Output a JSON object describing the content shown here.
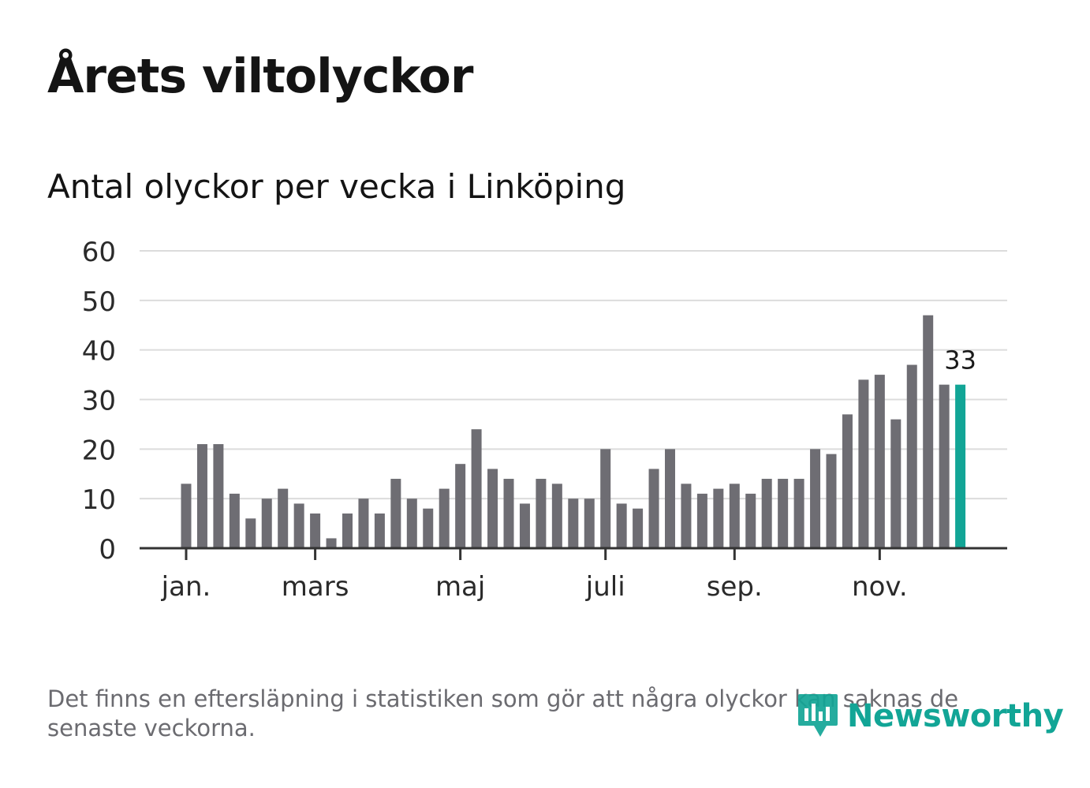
{
  "title": "Årets viltolyckor",
  "subtitle": "Antal olyckor per vecka i Linköping",
  "footnote": "Det finns en eftersläpning i statistiken som gör att några olyckor kan saknas de senaste veckorna.",
  "brand": {
    "name": "Newsworthy",
    "color": "#12a596"
  },
  "colors": {
    "bar": "#6e6d73",
    "highlight": "#12a596",
    "grid": "#dcdcdc",
    "axis": "#333333"
  },
  "chart_data": {
    "type": "bar",
    "title": "Antal olyckor per vecka i Linköping",
    "xlabel": "",
    "ylabel": "",
    "ylim": [
      0,
      60
    ],
    "yticks": [
      "0",
      "10",
      "20",
      "30",
      "40",
      "50",
      "60"
    ],
    "month_labels": [
      {
        "label": "jan.",
        "week": 1
      },
      {
        "label": "mars",
        "week": 9
      },
      {
        "label": "maj",
        "week": 18
      },
      {
        "label": "juli",
        "week": 27
      },
      {
        "label": "sep.",
        "week": 35
      },
      {
        "label": "nov.",
        "week": 44
      }
    ],
    "weeks": [
      1,
      2,
      3,
      4,
      5,
      6,
      7,
      8,
      9,
      10,
      11,
      12,
      13,
      14,
      15,
      16,
      17,
      18,
      19,
      20,
      21,
      22,
      23,
      24,
      25,
      26,
      27,
      28,
      29,
      30,
      31,
      32,
      33,
      34,
      35,
      36,
      37,
      38,
      39,
      40,
      41,
      42,
      43,
      44,
      45,
      46,
      47,
      48,
      49
    ],
    "values": [
      13,
      21,
      21,
      11,
      6,
      10,
      12,
      9,
      7,
      2,
      7,
      10,
      7,
      14,
      10,
      8,
      12,
      17,
      24,
      16,
      14,
      9,
      14,
      13,
      10,
      10,
      20,
      9,
      8,
      16,
      20,
      13,
      11,
      12,
      13,
      11,
      14,
      14,
      14,
      20,
      19,
      27,
      34,
      35,
      26,
      37,
      47,
      33,
      33
    ],
    "highlight_index": 48,
    "highlight_label": "33"
  }
}
